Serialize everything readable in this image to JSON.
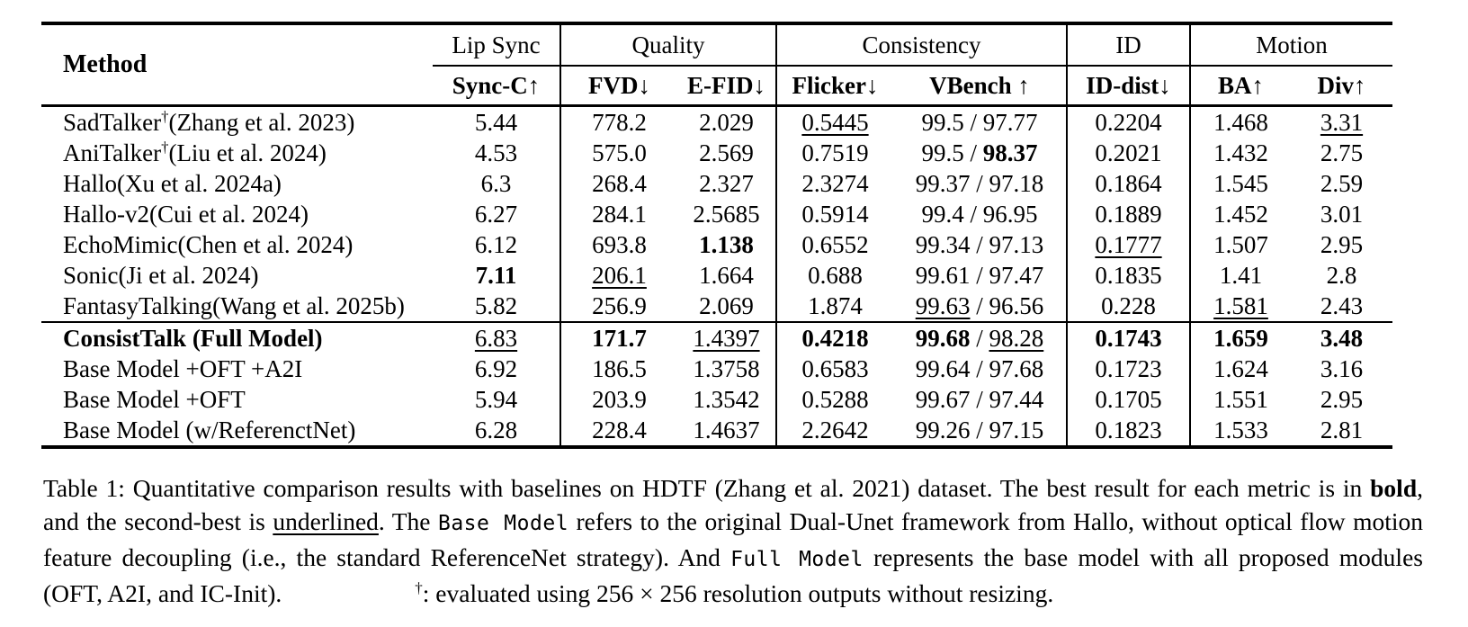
{
  "page": {
    "background": "#ffffff",
    "text_color": "#000000"
  },
  "table": {
    "method_header": "Method",
    "groups": [
      {
        "label": "Lip Sync",
        "span": 1
      },
      {
        "label": "Quality",
        "span": 2
      },
      {
        "label": "Consistency",
        "span": 2
      },
      {
        "label": "ID",
        "span": 1
      },
      {
        "label": "Motion",
        "span": 2
      }
    ],
    "metric_headers": [
      "Sync-C↑",
      "FVD↓",
      "E-FID↓",
      "Flicker↓",
      "VBench ↑",
      "ID-dist↓",
      "BA↑",
      "Div↑"
    ],
    "rows": [
      {
        "method": [
          [
            "SadTalker",
            "p"
          ],
          [
            "†",
            "sup"
          ],
          [
            "(Zhang et al. 2023)",
            "p"
          ]
        ],
        "cells": [
          [
            [
              "5.44",
              "p"
            ]
          ],
          [
            [
              "778.2",
              "p"
            ]
          ],
          [
            [
              "2.029",
              "p"
            ]
          ],
          [
            [
              "0.5445",
              "u"
            ]
          ],
          [
            [
              "99.5 / 97.77",
              "p"
            ]
          ],
          [
            [
              "0.2204",
              "p"
            ]
          ],
          [
            [
              "1.468",
              "p"
            ]
          ],
          [
            [
              "3.31",
              "u"
            ]
          ]
        ]
      },
      {
        "method": [
          [
            "AniTalker",
            "p"
          ],
          [
            "†",
            "sup"
          ],
          [
            "(Liu et al. 2024)",
            "p"
          ]
        ],
        "cells": [
          [
            [
              "4.53",
              "p"
            ]
          ],
          [
            [
              "575.0",
              "p"
            ]
          ],
          [
            [
              "2.569",
              "p"
            ]
          ],
          [
            [
              "0.7519",
              "p"
            ]
          ],
          [
            [
              "99.5 / ",
              "p"
            ],
            [
              "98.37",
              "b"
            ]
          ],
          [
            [
              "0.2021",
              "p"
            ]
          ],
          [
            [
              "1.432",
              "p"
            ]
          ],
          [
            [
              "2.75",
              "p"
            ]
          ]
        ]
      },
      {
        "method": [
          [
            "Hallo(Xu et al. 2024a)",
            "p"
          ]
        ],
        "cells": [
          [
            [
              "6.3",
              "p"
            ]
          ],
          [
            [
              "268.4",
              "p"
            ]
          ],
          [
            [
              "2.327",
              "p"
            ]
          ],
          [
            [
              "2.3274",
              "p"
            ]
          ],
          [
            [
              "99.37 / 97.18",
              "p"
            ]
          ],
          [
            [
              "0.1864",
              "p"
            ]
          ],
          [
            [
              "1.545",
              "p"
            ]
          ],
          [
            [
              "2.59",
              "p"
            ]
          ]
        ]
      },
      {
        "method": [
          [
            "Hallo-v2(Cui et al. 2024)",
            "p"
          ]
        ],
        "cells": [
          [
            [
              "6.27",
              "p"
            ]
          ],
          [
            [
              "284.1",
              "p"
            ]
          ],
          [
            [
              "2.5685",
              "p"
            ]
          ],
          [
            [
              "0.5914",
              "p"
            ]
          ],
          [
            [
              "99.4 / 96.95",
              "p"
            ]
          ],
          [
            [
              "0.1889",
              "p"
            ]
          ],
          [
            [
              "1.452",
              "p"
            ]
          ],
          [
            [
              "3.01",
              "p"
            ]
          ]
        ]
      },
      {
        "method": [
          [
            "EchoMimic(Chen et al. 2024)",
            "p"
          ]
        ],
        "cells": [
          [
            [
              "6.12",
              "p"
            ]
          ],
          [
            [
              "693.8",
              "p"
            ]
          ],
          [
            [
              "1.138",
              "b"
            ]
          ],
          [
            [
              "0.6552",
              "p"
            ]
          ],
          [
            [
              "99.34 / 97.13",
              "p"
            ]
          ],
          [
            [
              "0.1777",
              "u"
            ]
          ],
          [
            [
              "1.507",
              "p"
            ]
          ],
          [
            [
              "2.95",
              "p"
            ]
          ]
        ]
      },
      {
        "method": [
          [
            "Sonic(Ji et al. 2024)",
            "p"
          ]
        ],
        "cells": [
          [
            [
              "7.11",
              "b"
            ]
          ],
          [
            [
              "206.1",
              "u"
            ]
          ],
          [
            [
              "1.664",
              "p"
            ]
          ],
          [
            [
              "0.688",
              "p"
            ]
          ],
          [
            [
              "99.61 / 97.47",
              "p"
            ]
          ],
          [
            [
              "0.1835",
              "p"
            ]
          ],
          [
            [
              "1.41",
              "p"
            ]
          ],
          [
            [
              "2.8",
              "p"
            ]
          ]
        ]
      },
      {
        "method": [
          [
            "FantasyTalking(Wang et al. 2025b)",
            "p"
          ]
        ],
        "cells": [
          [
            [
              "5.82",
              "p"
            ]
          ],
          [
            [
              "256.9",
              "p"
            ]
          ],
          [
            [
              "2.069",
              "p"
            ]
          ],
          [
            [
              "1.874",
              "p"
            ]
          ],
          [
            [
              "99.63",
              "u"
            ],
            [
              " / 96.56",
              "p"
            ]
          ],
          [
            [
              "0.228",
              "p"
            ]
          ],
          [
            [
              "1.581",
              "u"
            ]
          ],
          [
            [
              "2.43",
              "p"
            ]
          ]
        ]
      },
      {
        "section": "ours",
        "method": [
          [
            "ConsistTalk (Full Model)",
            "b"
          ]
        ],
        "cells": [
          [
            [
              "6.83",
              "u"
            ]
          ],
          [
            [
              "171.7",
              "b"
            ]
          ],
          [
            [
              "1.4397",
              "u"
            ]
          ],
          [
            [
              "0.4218",
              "b"
            ]
          ],
          [
            [
              "99.68",
              "b"
            ],
            [
              " / ",
              "p"
            ],
            [
              "98.28",
              "u"
            ]
          ],
          [
            [
              "0.1743",
              "b"
            ]
          ],
          [
            [
              "1.659",
              "b"
            ]
          ],
          [
            [
              "3.48",
              "b"
            ]
          ]
        ]
      },
      {
        "method": [
          [
            "Base Model +OFT +A2I",
            "p"
          ]
        ],
        "cells": [
          [
            [
              "6.92",
              "p"
            ]
          ],
          [
            [
              "186.5",
              "p"
            ]
          ],
          [
            [
              "1.3758",
              "p"
            ]
          ],
          [
            [
              "0.6583",
              "p"
            ]
          ],
          [
            [
              "99.64 / 97.68",
              "p"
            ]
          ],
          [
            [
              "0.1723",
              "p"
            ]
          ],
          [
            [
              "1.624",
              "p"
            ]
          ],
          [
            [
              "3.16",
              "p"
            ]
          ]
        ]
      },
      {
        "method": [
          [
            "Base Model +OFT",
            "p"
          ]
        ],
        "cells": [
          [
            [
              "5.94",
              "p"
            ]
          ],
          [
            [
              "203.9",
              "p"
            ]
          ],
          [
            [
              "1.3542",
              "p"
            ]
          ],
          [
            [
              "0.5288",
              "p"
            ]
          ],
          [
            [
              "99.67 / 97.44",
              "p"
            ]
          ],
          [
            [
              "0.1705",
              "p"
            ]
          ],
          [
            [
              "1.551",
              "p"
            ]
          ],
          [
            [
              "2.95",
              "p"
            ]
          ]
        ]
      },
      {
        "method": [
          [
            "Base Model (w/ReferenctNet)",
            "p"
          ]
        ],
        "cells": [
          [
            [
              "6.28",
              "p"
            ]
          ],
          [
            [
              "228.4",
              "p"
            ]
          ],
          [
            [
              "1.4637",
              "p"
            ]
          ],
          [
            [
              "2.2642",
              "p"
            ]
          ],
          [
            [
              "99.26 / 97.15",
              "p"
            ]
          ],
          [
            [
              "0.1823",
              "p"
            ]
          ],
          [
            [
              "1.533",
              "p"
            ]
          ],
          [
            [
              "2.81",
              "p"
            ]
          ]
        ]
      }
    ]
  },
  "caption": {
    "parts": [
      [
        "Table 1: Quantitative comparison results with baselines on HDTF (Zhang et al. 2021) dataset. The best result for each metric is in ",
        "p"
      ],
      [
        "bold",
        "b"
      ],
      [
        ", and the second-best is ",
        "p"
      ],
      [
        "underlined",
        "u"
      ],
      [
        ". The ",
        "p"
      ],
      [
        "Base Model",
        "m"
      ],
      [
        " refers to the original Dual-Unet framework from Hallo, without optical flow motion feature decoupling (i.e., the standard ReferenceNet strategy). And ",
        "p"
      ],
      [
        "Full Model",
        "m"
      ],
      [
        " represents the base model with all proposed modules (OFT, A2I, and IC-Init).",
        "p"
      ],
      [
        "",
        "gap"
      ],
      [
        "†",
        "sup"
      ],
      [
        ": evaluated using 256 × 256 resolution outputs without resizing.",
        "p"
      ]
    ]
  }
}
